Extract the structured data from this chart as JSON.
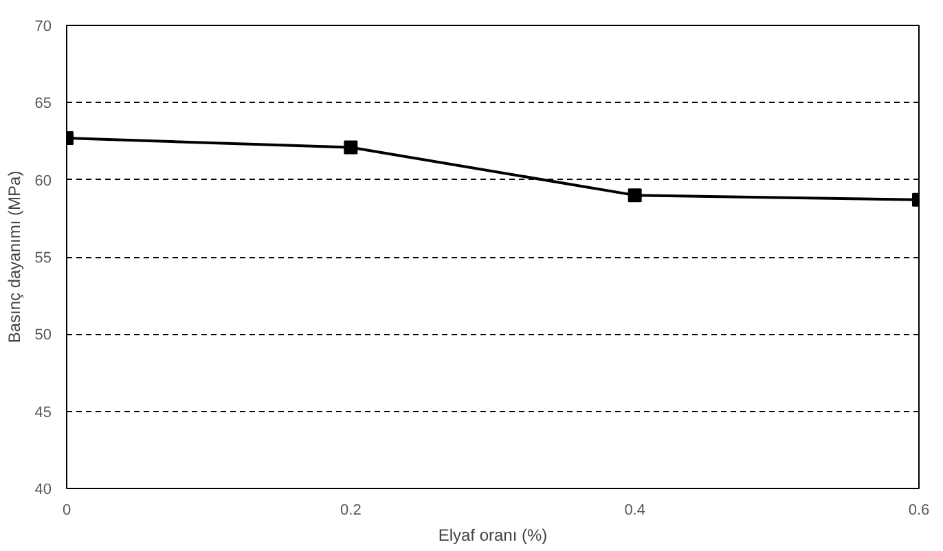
{
  "chart_data": {
    "type": "line",
    "xlabel": "Elyaf oranı (%)",
    "ylabel": "Basınç dayanımı (MPa)",
    "x": [
      0,
      0.2,
      0.4,
      0.6
    ],
    "series": [
      {
        "color": "#000000",
        "values": [
          62.7,
          62.1,
          59.0,
          58.7
        ]
      }
    ],
    "xlim": [
      0,
      0.6
    ],
    "xticks": [
      0,
      0.2,
      0.4,
      0.6
    ],
    "ylim": [
      40,
      70
    ],
    "yticks": [
      40,
      45,
      50,
      55,
      60,
      65,
      70
    ],
    "grid": "y",
    "marker": "square",
    "line_style": "solid"
  }
}
